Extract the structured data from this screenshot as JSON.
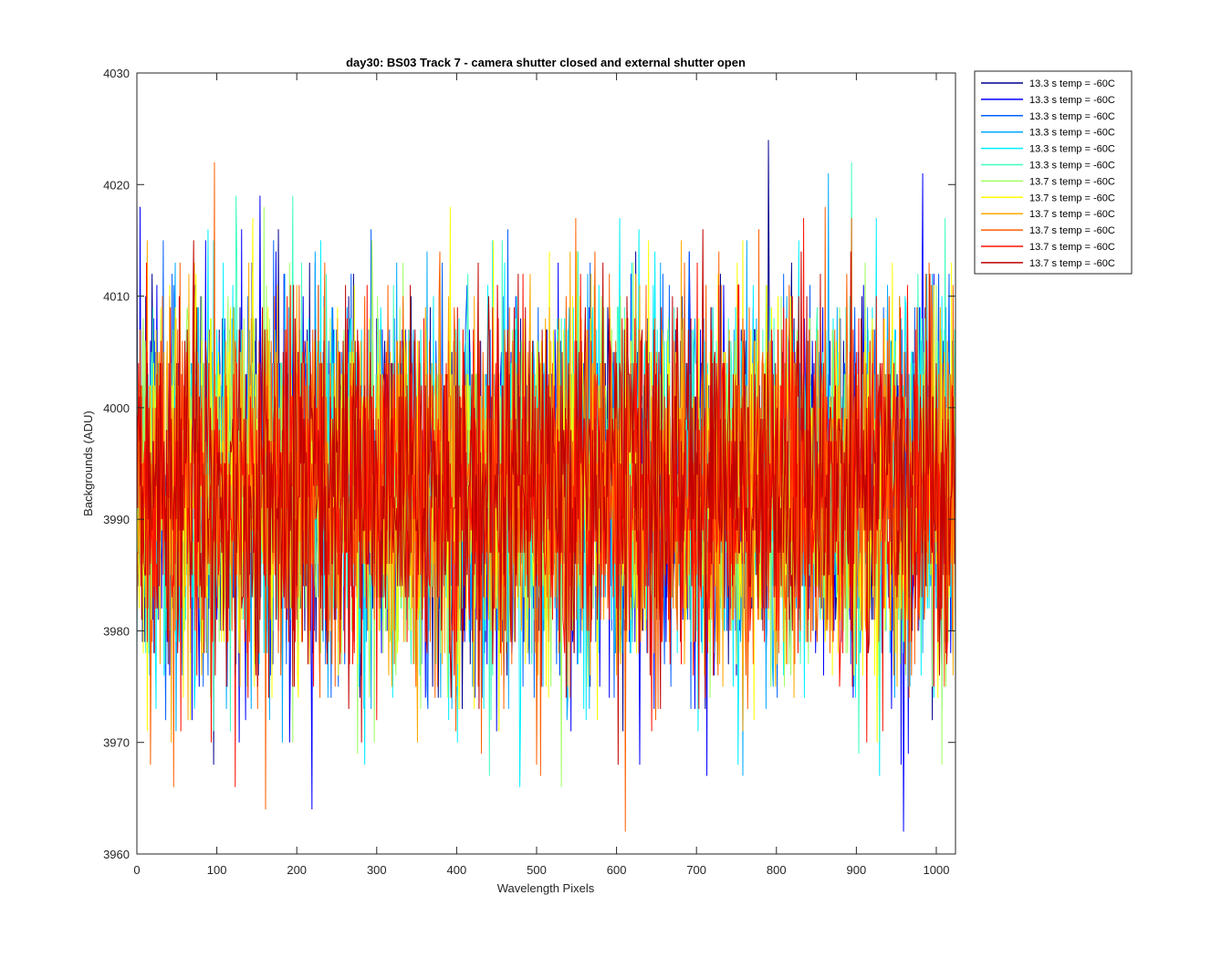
{
  "chart_data": {
    "type": "line",
    "title": "day30: BS03  Track 7 - camera shutter closed and external shutter open",
    "xlabel": "Wavelength Pixels",
    "ylabel": "Backgrounds (ADU)",
    "xlim": [
      0,
      1024
    ],
    "ylim": [
      3960,
      4030
    ],
    "xticks": [
      0,
      100,
      200,
      300,
      400,
      500,
      600,
      700,
      800,
      900,
      1000
    ],
    "yticks": [
      3960,
      3970,
      3980,
      3990,
      4000,
      4010,
      4020,
      4030
    ],
    "grid": false,
    "legend_position": "outside top-right",
    "noise": {
      "mean": 3993,
      "std": 8,
      "min": 3962,
      "max": 4029
    },
    "x": {
      "start": 0,
      "end": 1024,
      "step": 1
    },
    "series": [
      {
        "name": "13.3 s temp = -60C",
        "color": "#00008f",
        "seed": 11
      },
      {
        "name": "13.3 s temp = -60C",
        "color": "#0000ff",
        "seed": 23
      },
      {
        "name": "13.3 s temp = -60C",
        "color": "#0060ff",
        "seed": 37
      },
      {
        "name": "13.3 s temp = -60C",
        "color": "#00aaff",
        "seed": 41
      },
      {
        "name": "13.3 s temp = -60C",
        "color": "#00efff",
        "seed": 53
      },
      {
        "name": "13.3 s temp = -60C",
        "color": "#40ffbf",
        "seed": 67
      },
      {
        "name": "13.7 s temp = -60C",
        "color": "#9fff60",
        "seed": 71
      },
      {
        "name": "13.7 s temp = -60C",
        "color": "#ffff00",
        "seed": 83
      },
      {
        "name": "13.7 s temp = -60C",
        "color": "#ffaa00",
        "seed": 97
      },
      {
        "name": "13.7 s temp = -60C",
        "color": "#ff6000",
        "seed": 101
      },
      {
        "name": "13.7 s temp = -60C",
        "color": "#ff1000",
        "seed": 113
      },
      {
        "name": "13.7 s temp = -60C",
        "color": "#c00000",
        "seed": 127
      }
    ]
  }
}
